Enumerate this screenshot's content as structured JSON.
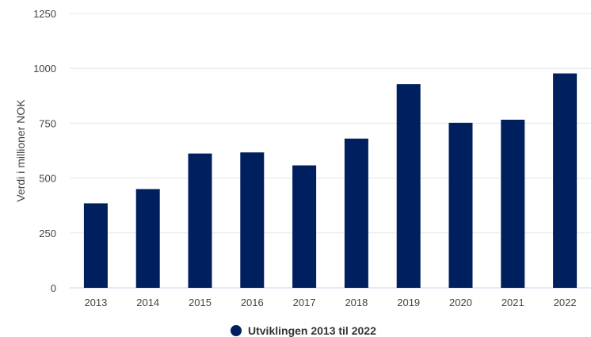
{
  "chart_data": {
    "type": "bar",
    "categories": [
      "2013",
      "2014",
      "2015",
      "2016",
      "2017",
      "2018",
      "2019",
      "2020",
      "2021",
      "2022"
    ],
    "values": [
      385,
      450,
      612,
      617,
      558,
      680,
      928,
      752,
      766,
      977
    ],
    "ylabel": "Verdi i millioner NOK",
    "ylim": [
      0,
      1250
    ],
    "yticks": [
      0,
      250,
      500,
      750,
      1000,
      1250
    ],
    "grid": true,
    "bar_color": "#001f5f",
    "legend": {
      "label": "Utviklingen 2013 til 2022",
      "position": "bottom"
    }
  }
}
